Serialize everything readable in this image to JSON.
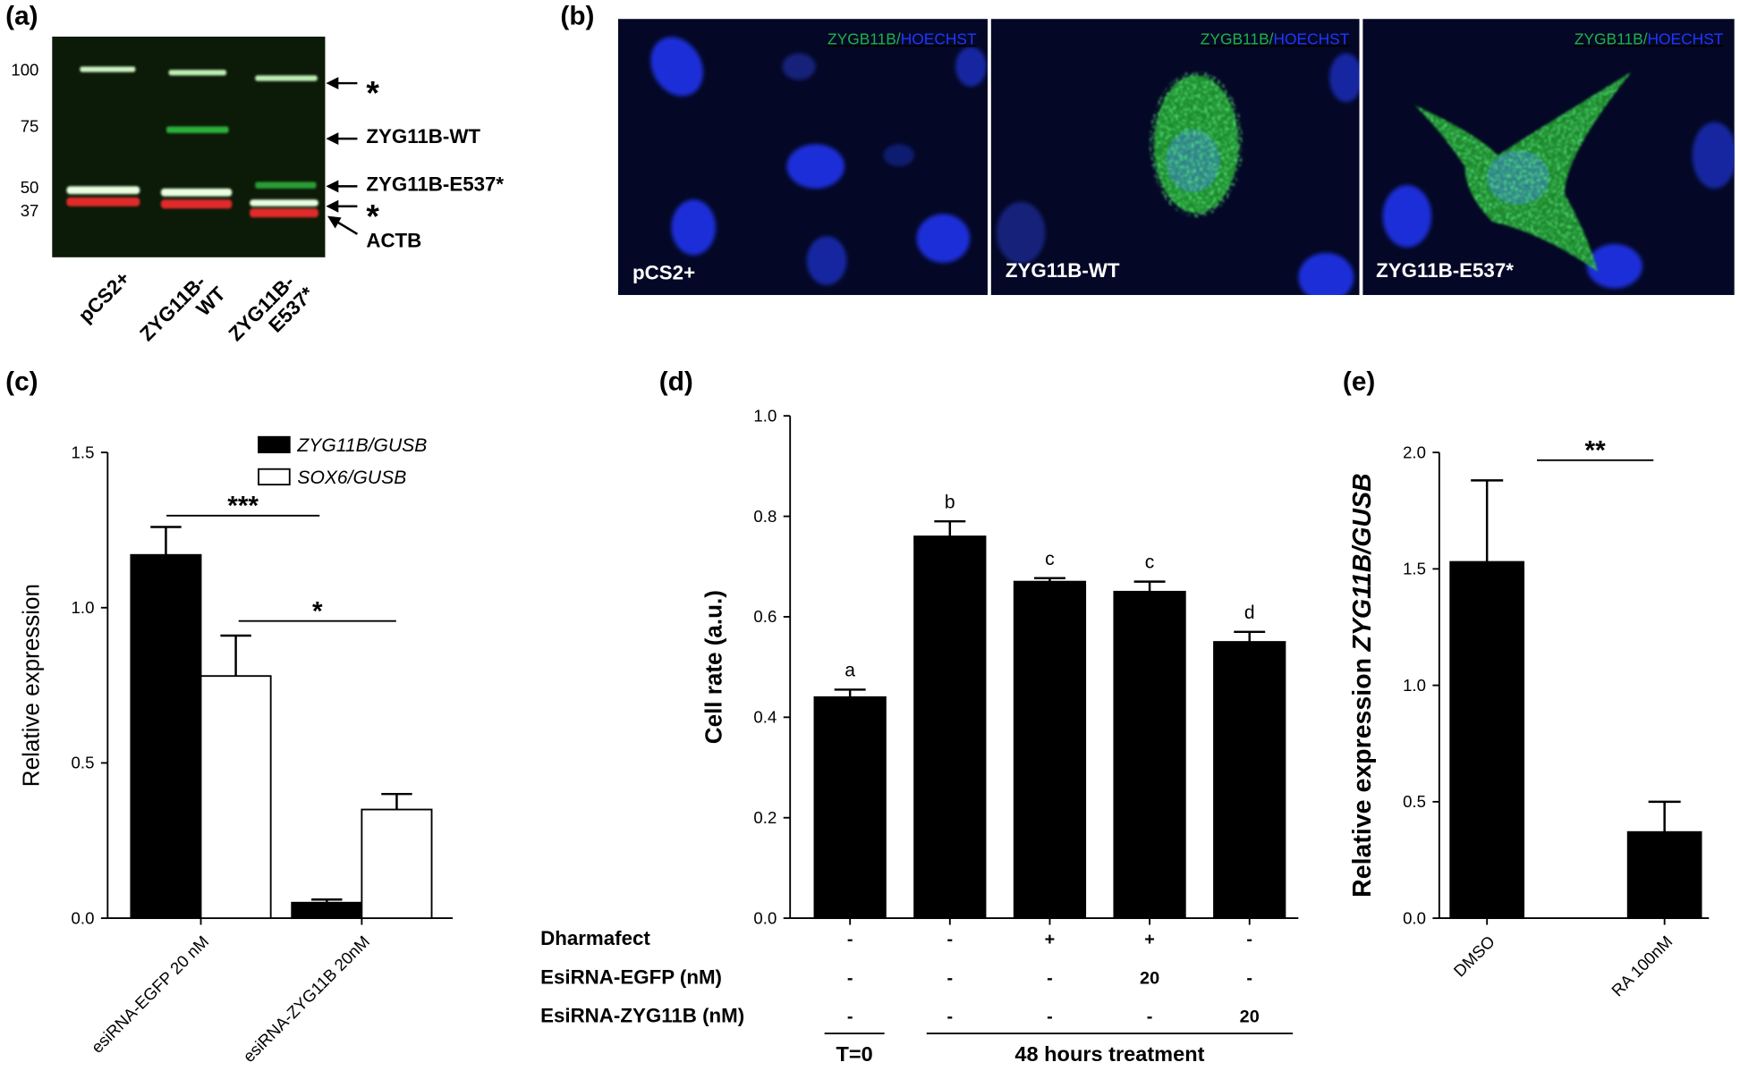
{
  "panel_labels": [
    "(a)",
    "(b)",
    "(c)",
    "(d)",
    "(e)"
  ],
  "blot": {
    "markers": [
      "100",
      "75",
      "50",
      "37"
    ],
    "bands": [
      "*",
      "ZYG11B-WT",
      "ZYG11B-E537*",
      "*",
      "ACTB"
    ],
    "lanes": [
      [
        "pCS2+"
      ],
      [
        "ZYG11B-",
        "WT"
      ],
      [
        "ZYG11B-",
        "E537*"
      ]
    ]
  },
  "micrographs": {
    "stain": [
      "ZYGB11B/",
      "HOECHST"
    ],
    "captions": [
      "pCS2+",
      "ZYG11B-WT",
      "ZYG11B-E537*"
    ]
  },
  "chart_data": [
    {
      "type": "bar",
      "ylabel": "Relative expression",
      "categories": [
        "esiRNA-EGFP 20 nM",
        "esiRNA-ZYG11B 20nM"
      ],
      "series": [
        {
          "name": "ZYG11B/GUSB",
          "color": "#000000",
          "values": [
            1.17,
            0.05
          ],
          "errors": [
            0.09,
            0.01
          ]
        },
        {
          "name": "SOX6/GUSB",
          "color": "#ffffff",
          "values": [
            0.78,
            0.35
          ],
          "errors": [
            0.13,
            0.05
          ]
        }
      ],
      "ylim": [
        0,
        1.5
      ],
      "yticks": [
        {
          "value": 0,
          "label": "0.0"
        },
        0.5,
        {
          "value": 1,
          "label": "1.0"
        },
        1.5
      ],
      "annotations": [
        "***",
        "*"
      ]
    },
    {
      "type": "bar",
      "ylabel": "Cell rate (a.u.)",
      "categories": [
        null,
        null,
        null,
        null,
        null
      ],
      "series": [
        {
          "color": "#000000",
          "values": [
            0.44,
            0.76,
            0.67,
            0.65,
            0.55
          ],
          "errors": [
            0.015,
            0.03,
            0.007,
            0.02,
            0.02
          ]
        }
      ],
      "letters": [
        "a",
        "b",
        "c",
        "c",
        "d"
      ],
      "ylim": [
        0,
        1
      ],
      "yticks": [
        {
          "value": 0,
          "label": "0.0"
        },
        0.2,
        0.4,
        0.6,
        0.8,
        {
          "value": 1,
          "label": "1.0"
        }
      ],
      "conditions": [
        {
          "label": "Dharmafect",
          "cells": [
            "-",
            "-",
            "+",
            "+",
            "-"
          ]
        },
        {
          "label": "EsiRNA-EGFP (nM)",
          "cells": [
            "-",
            "-",
            "-",
            "20",
            "-"
          ]
        },
        {
          "label": "EsiRNA-ZYG11B (nM)",
          "cells": [
            "-",
            "-",
            "-",
            "-",
            "20"
          ]
        }
      ],
      "groups": [
        "T=0",
        "48 hours treatment"
      ]
    },
    {
      "type": "bar",
      "ylabel": "Relative expression",
      "ylabel_gene": "ZYG11B/GUSB",
      "categories": [
        "DMSO",
        "RA 100nM"
      ],
      "series": [
        {
          "color": "#000000",
          "values": [
            1.53,
            0.37
          ],
          "errors": [
            0.35,
            0.13
          ]
        }
      ],
      "ylim": [
        0,
        2
      ],
      "yticks": [
        {
          "value": 0,
          "label": "0.0"
        },
        0.5,
        {
          "value": 1,
          "label": "1.0"
        },
        1.5,
        {
          "value": 2,
          "label": "2.0"
        }
      ],
      "annotations": [
        "**"
      ]
    }
  ]
}
